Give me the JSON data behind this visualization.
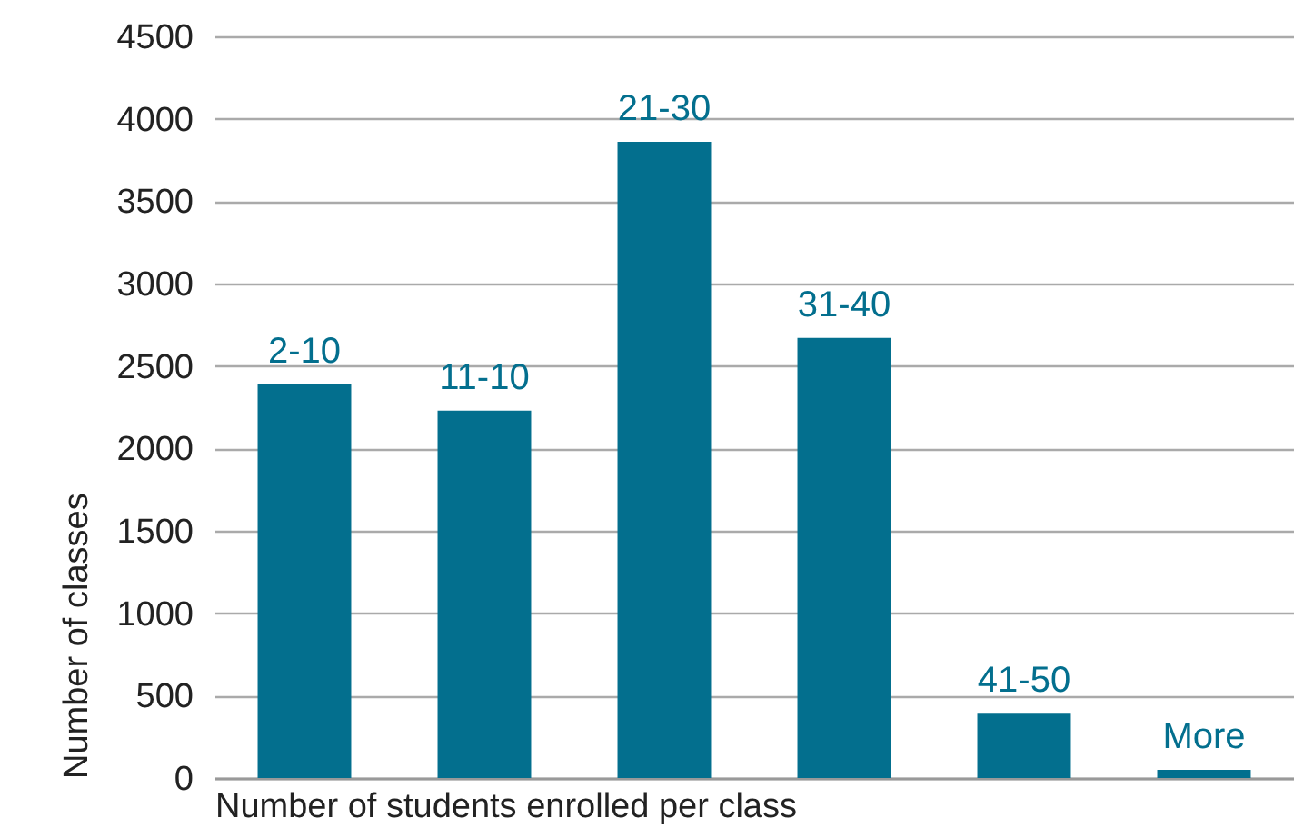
{
  "chart_data": {
    "type": "bar",
    "xlabel": "Number of students enrolled per class",
    "ylabel": "Number of classes",
    "categories": [
      "2-10",
      "11-10",
      "21-30",
      "31-40",
      "41-50",
      "More"
    ],
    "values": [
      2390,
      2230,
      3860,
      2670,
      390,
      50
    ],
    "color": "#036f8e",
    "ylim": [
      0,
      4500
    ],
    "yticks": [
      0,
      500,
      1000,
      1500,
      2000,
      2500,
      3000,
      3500,
      4000,
      4500
    ],
    "grid": "y"
  }
}
